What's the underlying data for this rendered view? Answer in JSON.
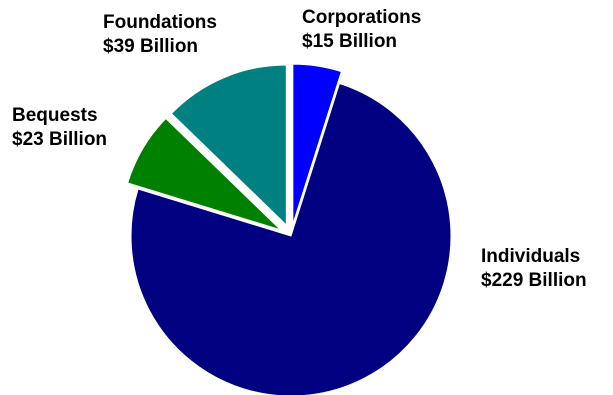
{
  "chart_data": {
    "type": "pie",
    "title": "",
    "unit": "Billion",
    "slices": [
      {
        "name": "Corporations",
        "value": 15,
        "value_label": "$15 Billion",
        "color": "#0000ff",
        "exploded": true
      },
      {
        "name": "Individuals",
        "value": 229,
        "value_label": "$229 Billion",
        "color": "#000080",
        "exploded": false
      },
      {
        "name": "Bequests",
        "value": 23,
        "value_label": "$23 Billion",
        "color": "#008000",
        "exploded": true
      },
      {
        "name": "Foundations",
        "value": 39,
        "value_label": "$39 Billion",
        "color": "#008080",
        "exploded": true
      }
    ],
    "start_angle_deg": 0,
    "direction": "clockwise",
    "legend": "none",
    "data_labels": "outside"
  }
}
